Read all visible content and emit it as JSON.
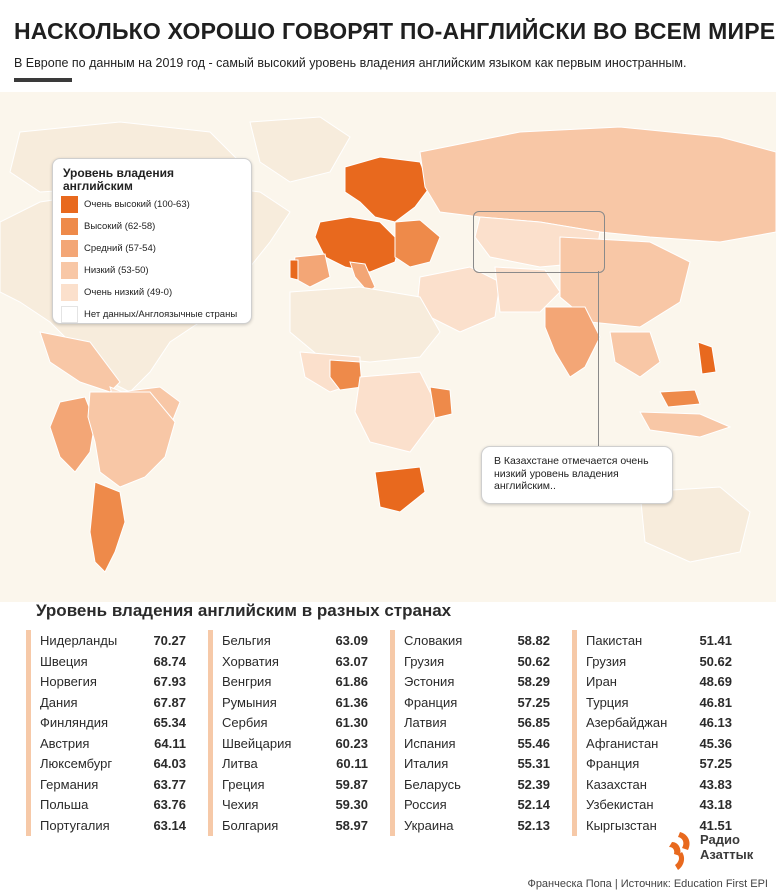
{
  "header": {
    "title": "НАСКОЛЬКО ХОРОШО ГОВОРЯТ ПО-АНГЛИЙСКИ ВО ВСЕМ МИРЕ?",
    "subtitle": "В Европе по данным на 2019 год - самый высокий уровень владения английским языком как первым иностранным."
  },
  "legend": {
    "title": "Уровень владения английским",
    "items": [
      {
        "label": "Очень высокий (100-63)",
        "color": "#e8691e"
      },
      {
        "label": "Высокий (62-58)",
        "color": "#ee8a4a"
      },
      {
        "label": "Средний (57-54)",
        "color": "#f3a676"
      },
      {
        "label": "Низкий (53-50)",
        "color": "#f8c7a6"
      },
      {
        "label": "Очень низкий (49-0)",
        "color": "#fbe0cc"
      },
      {
        "label": "Нет данных/Англоязычные страны",
        "color": "#ffffff"
      }
    ]
  },
  "callout": {
    "text": "В Казахстане отмечается очень низкий уровень владения английским.."
  },
  "chart_data": {
    "type": "table",
    "title": "Уровень владения английским в разных странах",
    "columns": [
      [
        {
          "country": "Нидерланды",
          "value": "70.27"
        },
        {
          "country": "Швеция",
          "value": "68.74"
        },
        {
          "country": "Норвегия",
          "value": "67.93"
        },
        {
          "country": "Дания",
          "value": "67.87"
        },
        {
          "country": "Финляндия",
          "value": "65.34"
        },
        {
          "country": "Австрия",
          "value": "64.11"
        },
        {
          "country": "Люксембург",
          "value": "64.03"
        },
        {
          "country": "Германия",
          "value": "63.77"
        },
        {
          "country": "Польша",
          "value": "63.76"
        },
        {
          "country": "Португалия",
          "value": "63.14"
        }
      ],
      [
        {
          "country": "Бельгия",
          "value": "63.09"
        },
        {
          "country": "Хорватия",
          "value": "63.07"
        },
        {
          "country": "Венгрия",
          "value": "61.86"
        },
        {
          "country": "Румыния",
          "value": "61.36"
        },
        {
          "country": "Сербия",
          "value": "61.30"
        },
        {
          "country": "Швейцария",
          "value": "60.23"
        },
        {
          "country": "Литва",
          "value": "60.11"
        },
        {
          "country": "Греция",
          "value": "59.87"
        },
        {
          "country": "Чехия",
          "value": "59.30"
        },
        {
          "country": "Болгария",
          "value": "58.97"
        }
      ],
      [
        {
          "country": "Словакия",
          "value": "58.82"
        },
        {
          "country": "Грузия",
          "value": "50.62"
        },
        {
          "country": "Эстония",
          "value": "58.29"
        },
        {
          "country": "Франция",
          "value": "57.25"
        },
        {
          "country": "Латвия",
          "value": "56.85"
        },
        {
          "country": "Испания",
          "value": "55.46"
        },
        {
          "country": "Италия",
          "value": "55.31"
        },
        {
          "country": "Беларусь",
          "value": "52.39"
        },
        {
          "country": "Россия",
          "value": "52.14"
        },
        {
          "country": "Украина",
          "value": "52.13"
        }
      ],
      [
        {
          "country": "Пакистан",
          "value": "51.41"
        },
        {
          "country": "Грузия",
          "value": "50.62"
        },
        {
          "country": "Иран",
          "value": "48.69"
        },
        {
          "country": "Турция",
          "value": "46.81"
        },
        {
          "country": "Азербайджан",
          "value": "46.13"
        },
        {
          "country": "Афганистан",
          "value": "45.36"
        },
        {
          "country": "Франция",
          "value": "57.25"
        },
        {
          "country": "Казахстан",
          "value": "43.83"
        },
        {
          "country": "Узбекистан",
          "value": "43.18"
        },
        {
          "country": "Кыргызстан",
          "value": "41.51"
        }
      ]
    ]
  },
  "logo": {
    "line1": "Радио",
    "line2": "Азаттык"
  },
  "credit": "Франческа Попа | Источник: Education First EPI"
}
